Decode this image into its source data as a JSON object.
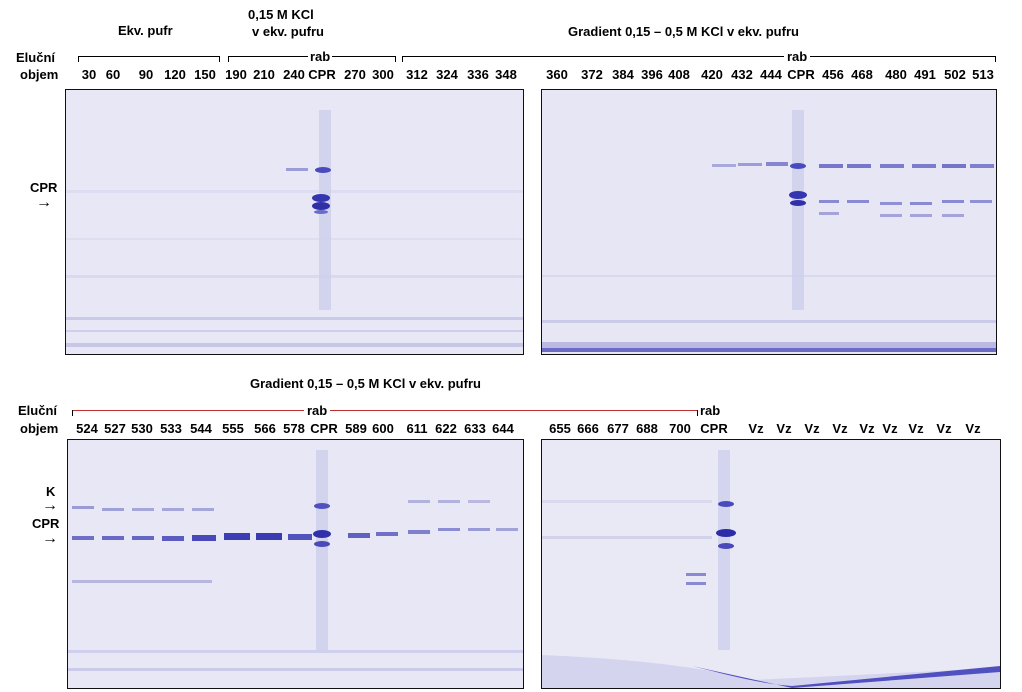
{
  "top": {
    "row_label_line1": "Eluční",
    "row_label_line2": "objem",
    "group1": "Ekv. pufr",
    "group2_line1": "0,15 M KCl",
    "group2_line2": "v ekv. pufru",
    "group3": "Gradient 0,15 – 0,5 M KCl v ekv. pufru",
    "rab_left": "rab",
    "rab_right": "rab",
    "cpr_label": "CPR",
    "lanes_left": [
      "30",
      "60",
      "90",
      "120",
      "150",
      "190",
      "210",
      "240",
      "CPR",
      "270",
      "300",
      "312",
      "324",
      "336",
      "348"
    ],
    "lanes_right": [
      "360",
      "372",
      "384",
      "396",
      "408",
      "420",
      "432",
      "444",
      "CPR",
      "456",
      "468",
      "480",
      "491",
      "502",
      "513"
    ]
  },
  "bottom": {
    "group": "Gradient 0,15 – 0,5 M KCl v ekv. pufru",
    "row_label_line1": "Eluční",
    "row_label_line2": "objem",
    "rab_center": "rab",
    "rab_right": "rab",
    "k_label": "K",
    "cpr_label": "CPR",
    "lanes_left": [
      "524",
      "527",
      "530",
      "533",
      "544",
      "555",
      "566",
      "578",
      "CPR",
      "589",
      "600",
      "611",
      "622",
      "633",
      "644"
    ],
    "lanes_right": [
      "655",
      "666",
      "677",
      "688",
      "700",
      "CPR",
      "Vz",
      "Vz",
      "Vz",
      "Vz",
      "Vz",
      "Vz",
      "Vz",
      "Vz",
      "Vz"
    ]
  },
  "colors": {
    "gel_bg": "#e6e6f4",
    "band": "#3c3cb4",
    "red_line": "#c03030"
  }
}
